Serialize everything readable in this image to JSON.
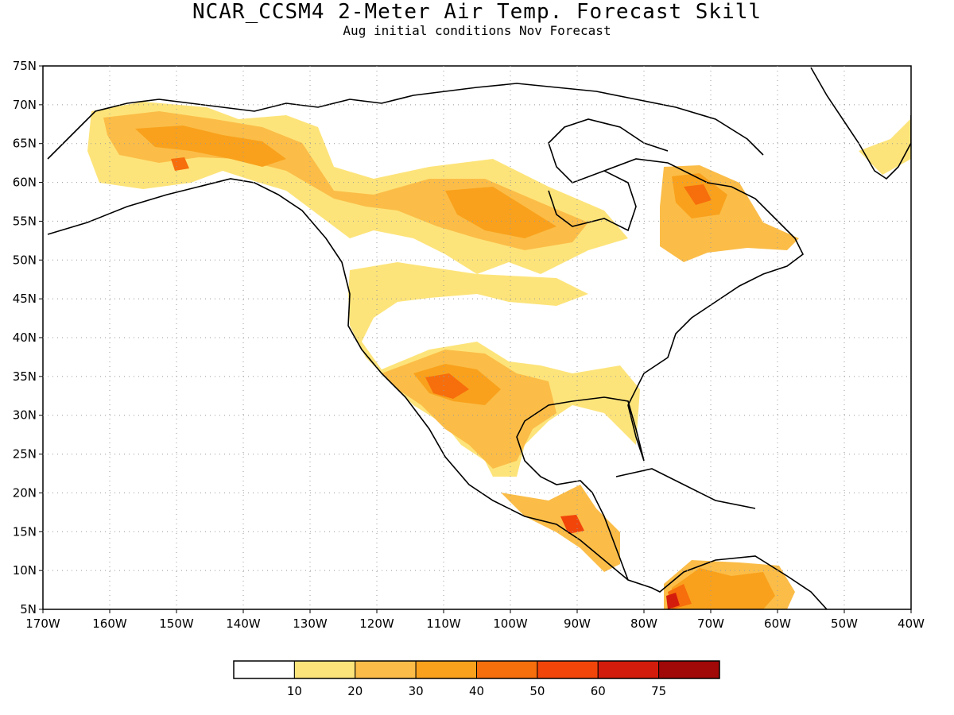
{
  "title": "NCAR_CCSM4 2-Meter Air Temp. Forecast Skill",
  "subtitle": "Aug initial conditions  Nov Forecast",
  "axes": {
    "lat_labels": [
      "75N",
      "70N",
      "65N",
      "60N",
      "55N",
      "50N",
      "45N",
      "40N",
      "35N",
      "30N",
      "25N",
      "20N",
      "15N",
      "10N",
      "5N"
    ],
    "lon_labels": [
      "170W",
      "160W",
      "150W",
      "140W",
      "130W",
      "120W",
      "110W",
      "100W",
      "90W",
      "80W",
      "70W",
      "60W",
      "50W",
      "40W"
    ],
    "lat_range": [
      5,
      75
    ],
    "lon_range": [
      -170,
      -40
    ],
    "grid": "dotted"
  },
  "colorbar": {
    "labels": [
      "10",
      "20",
      "30",
      "40",
      "50",
      "60",
      "75"
    ],
    "colors": [
      "#ffffff",
      "#fde47a",
      "#fbbd48",
      "#f9a11c",
      "#f76e0c",
      "#f2450a",
      "#d41c0c",
      "#a10808"
    ]
  }
}
